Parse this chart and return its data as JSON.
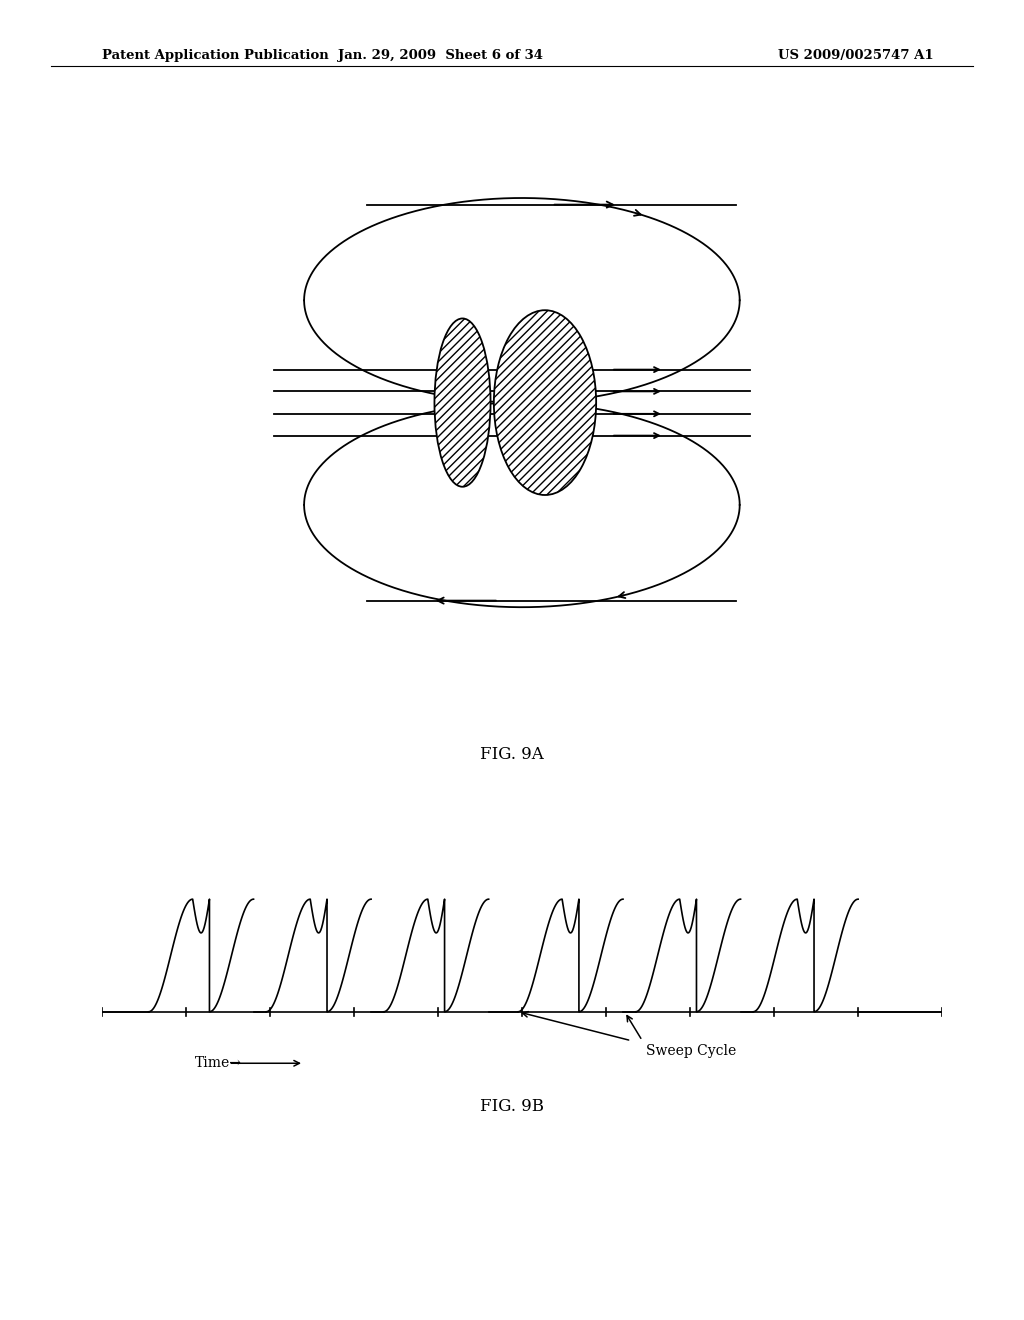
{
  "background_color": "#ffffff",
  "header_left": "Patent Application Publication",
  "header_center": "Jan. 29, 2009  Sheet 6 of 34",
  "header_right": "US 2009/0025747 A1",
  "fig9a_label": "FIG. 9A",
  "fig9b_label": "FIG. 9B",
  "time_label": "Time→",
  "sweep_label": "Sweep Cycle"
}
